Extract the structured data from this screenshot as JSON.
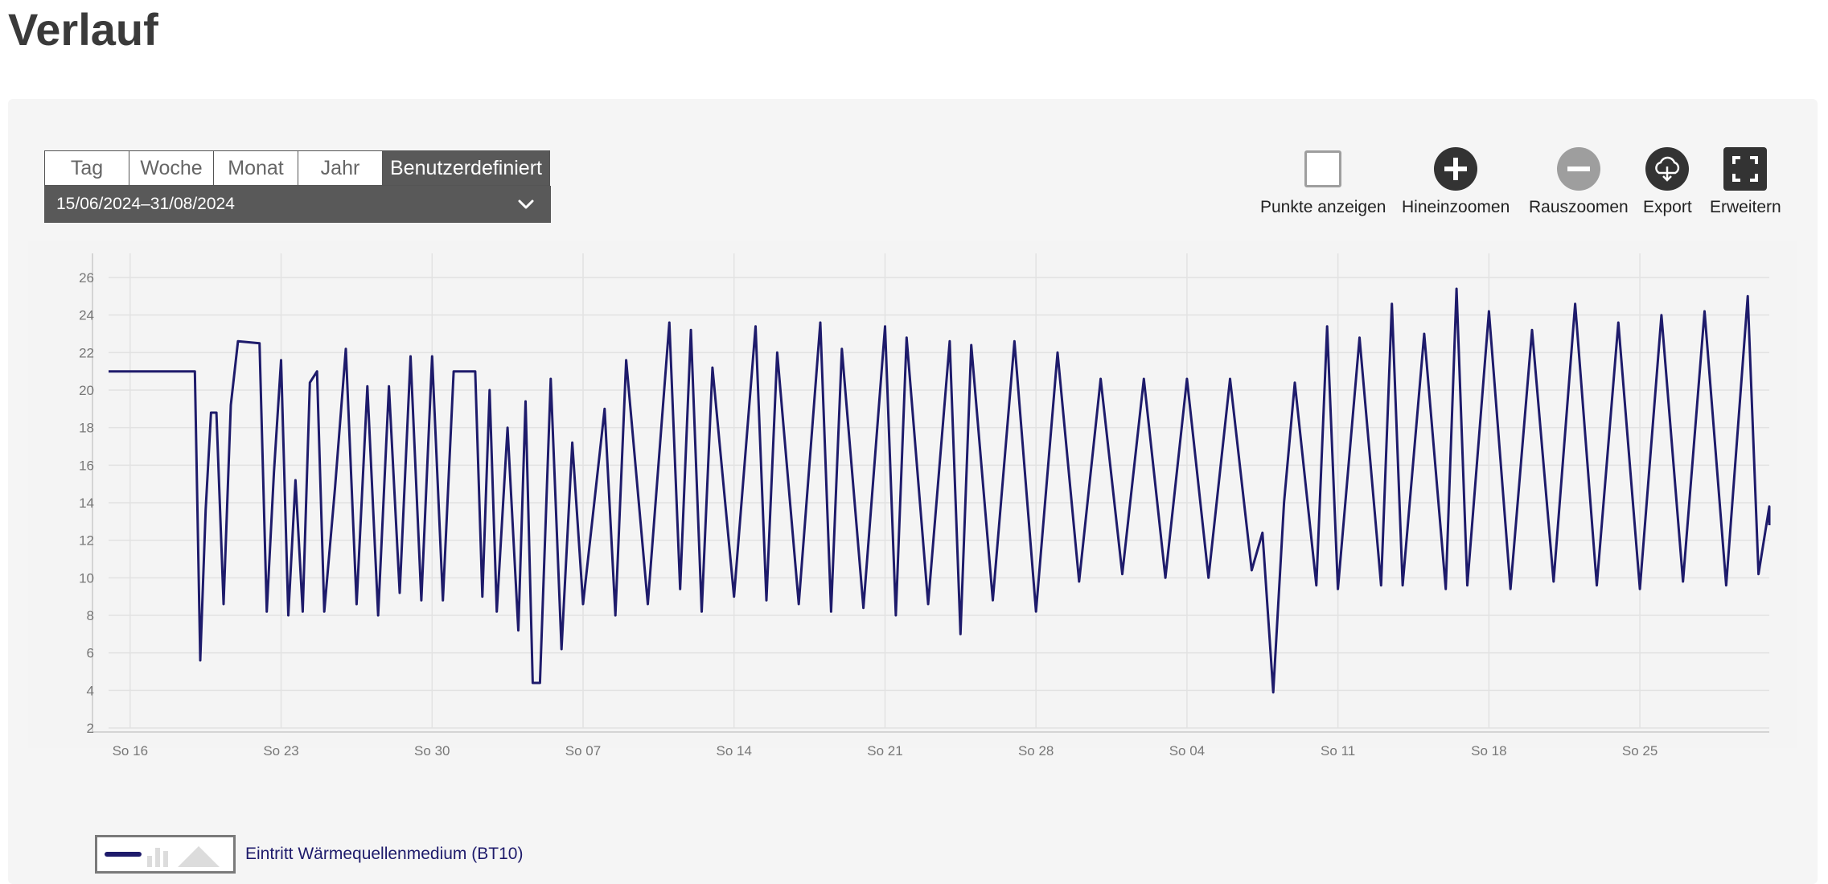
{
  "page": {
    "title": "Verlauf"
  },
  "tabs": [
    {
      "label": "Tag",
      "active": false
    },
    {
      "label": "Woche",
      "active": false
    },
    {
      "label": "Monat",
      "active": false
    },
    {
      "label": "Jahr",
      "active": false
    },
    {
      "label": "Benutzerdefiniert",
      "active": true
    }
  ],
  "date_range": {
    "value": "15/06/2024–31/08/2024"
  },
  "toolbar": {
    "show_points_label": "Punkte anzeigen",
    "zoom_in_label": "Hineinzoomen",
    "zoom_out_label": "Rauszoomen",
    "export_label": "Export",
    "expand_label": "Erweitern"
  },
  "legend": {
    "label": "Eintritt Wärmequellenmedium (BT10)"
  },
  "colors": {
    "series": "#1e1b6b",
    "active_tab": "#595959",
    "icon_dark": "#333333",
    "icon_disabled": "#9e9e9e",
    "panel_bg": "#f5f5f5"
  },
  "chart_data": {
    "type": "line",
    "x_start": "2024-06-15",
    "x_end": "2024-08-31",
    "xlim": [
      "2024-06-15",
      "2024-08-31"
    ],
    "x_ticks": [
      "So 16",
      "So 23",
      "So 30",
      "So 07",
      "So 14",
      "So 21",
      "So 28",
      "So 04",
      "So 11",
      "So 18",
      "So 25"
    ],
    "y_ticks": [
      2,
      4,
      6,
      8,
      10,
      12,
      14,
      16,
      18,
      20,
      22,
      24,
      26
    ],
    "ylim": [
      2,
      26
    ],
    "grid": true,
    "legend_position": "bottom-left",
    "series": [
      {
        "name": "Eintritt Wärmequellenmedium (BT10)",
        "color": "#1e1b6b",
        "points": [
          [
            "2024-06-15",
            21.0
          ],
          [
            "2024-06-19",
            21.0
          ],
          [
            "2024-06-19",
            5.6
          ],
          [
            "2024-06-19",
            13.6
          ],
          [
            "2024-06-19",
            18.8
          ],
          [
            "2024-06-20",
            18.8
          ],
          [
            "2024-06-20",
            8.6
          ],
          [
            "2024-06-20",
            19.2
          ],
          [
            "2024-06-21",
            22.6
          ],
          [
            "2024-06-22",
            22.5
          ],
          [
            "2024-06-22",
            8.2
          ],
          [
            "2024-06-22",
            15.6
          ],
          [
            "2024-06-23",
            21.6
          ],
          [
            "2024-06-23",
            8.0
          ],
          [
            "2024-06-23",
            15.2
          ],
          [
            "2024-06-24",
            8.2
          ],
          [
            "2024-06-24",
            20.4
          ],
          [
            "2024-06-24",
            21.0
          ],
          [
            "2024-06-25",
            8.2
          ],
          [
            "2024-06-25",
            14.8
          ],
          [
            "2024-06-26",
            22.2
          ],
          [
            "2024-06-26",
            8.6
          ],
          [
            "2024-06-27",
            20.2
          ],
          [
            "2024-06-27",
            8.0
          ],
          [
            "2024-06-28",
            20.2
          ],
          [
            "2024-06-28",
            9.2
          ],
          [
            "2024-06-29",
            21.8
          ],
          [
            "2024-06-29",
            8.8
          ],
          [
            "2024-06-30",
            21.8
          ],
          [
            "2024-06-30",
            8.8
          ],
          [
            "2024-07-01",
            21.0
          ],
          [
            "2024-07-02",
            21.0
          ],
          [
            "2024-07-02",
            9.0
          ],
          [
            "2024-07-02",
            20.0
          ],
          [
            "2024-07-03",
            8.2
          ],
          [
            "2024-07-03",
            18.0
          ],
          [
            "2024-07-04",
            7.2
          ],
          [
            "2024-07-04",
            19.4
          ],
          [
            "2024-07-04",
            4.4
          ],
          [
            "2024-07-05",
            4.4
          ],
          [
            "2024-07-05",
            20.6
          ],
          [
            "2024-07-06",
            6.2
          ],
          [
            "2024-07-06",
            17.2
          ],
          [
            "2024-07-07",
            8.6
          ],
          [
            "2024-07-08",
            19.0
          ],
          [
            "2024-07-08",
            8.0
          ],
          [
            "2024-07-09",
            21.6
          ],
          [
            "2024-07-10",
            8.6
          ],
          [
            "2024-07-11",
            23.6
          ],
          [
            "2024-07-11",
            9.4
          ],
          [
            "2024-07-12",
            23.2
          ],
          [
            "2024-07-12",
            8.2
          ],
          [
            "2024-07-13",
            21.2
          ],
          [
            "2024-07-14",
            9.0
          ],
          [
            "2024-07-15",
            23.4
          ],
          [
            "2024-07-15",
            8.8
          ],
          [
            "2024-07-16",
            22.0
          ],
          [
            "2024-07-17",
            8.6
          ],
          [
            "2024-07-18",
            23.6
          ],
          [
            "2024-07-18",
            8.2
          ],
          [
            "2024-07-19",
            22.2
          ],
          [
            "2024-07-20",
            8.4
          ],
          [
            "2024-07-21",
            23.4
          ],
          [
            "2024-07-21",
            8.0
          ],
          [
            "2024-07-22",
            22.8
          ],
          [
            "2024-07-23",
            8.6
          ],
          [
            "2024-07-24",
            22.6
          ],
          [
            "2024-07-24",
            7.0
          ],
          [
            "2024-07-25",
            22.4
          ],
          [
            "2024-07-26",
            8.8
          ],
          [
            "2024-07-27",
            22.6
          ],
          [
            "2024-07-28",
            8.2
          ],
          [
            "2024-07-29",
            22.0
          ],
          [
            "2024-07-30",
            9.8
          ],
          [
            "2024-07-31",
            20.6
          ],
          [
            "2024-08-01",
            10.2
          ],
          [
            "2024-08-02",
            20.6
          ],
          [
            "2024-08-03",
            10.0
          ],
          [
            "2024-08-04",
            20.6
          ],
          [
            "2024-08-05",
            10.0
          ],
          [
            "2024-08-06",
            20.6
          ],
          [
            "2024-08-07",
            10.4
          ],
          [
            "2024-08-07",
            12.4
          ],
          [
            "2024-08-08",
            3.9
          ],
          [
            "2024-08-08",
            14.0
          ],
          [
            "2024-08-09",
            20.4
          ],
          [
            "2024-08-10",
            9.6
          ],
          [
            "2024-08-10",
            23.4
          ],
          [
            "2024-08-11",
            9.4
          ],
          [
            "2024-08-12",
            22.8
          ],
          [
            "2024-08-13",
            9.6
          ],
          [
            "2024-08-13",
            24.6
          ],
          [
            "2024-08-14",
            9.6
          ],
          [
            "2024-08-15",
            23.0
          ],
          [
            "2024-08-16",
            9.4
          ],
          [
            "2024-08-16",
            25.4
          ],
          [
            "2024-08-17",
            9.6
          ],
          [
            "2024-08-18",
            24.2
          ],
          [
            "2024-08-19",
            9.4
          ],
          [
            "2024-08-20",
            23.2
          ],
          [
            "2024-08-21",
            9.8
          ],
          [
            "2024-08-22",
            24.6
          ],
          [
            "2024-08-23",
            9.6
          ],
          [
            "2024-08-24",
            23.6
          ],
          [
            "2024-08-25",
            9.4
          ],
          [
            "2024-08-26",
            24.0
          ],
          [
            "2024-08-27",
            9.8
          ],
          [
            "2024-08-28",
            24.2
          ],
          [
            "2024-08-29",
            9.6
          ],
          [
            "2024-08-30",
            25.0
          ],
          [
            "2024-08-30",
            10.2
          ],
          [
            "2024-08-31",
            13.8
          ],
          [
            "2024-08-31",
            12.8
          ]
        ]
      }
    ]
  }
}
